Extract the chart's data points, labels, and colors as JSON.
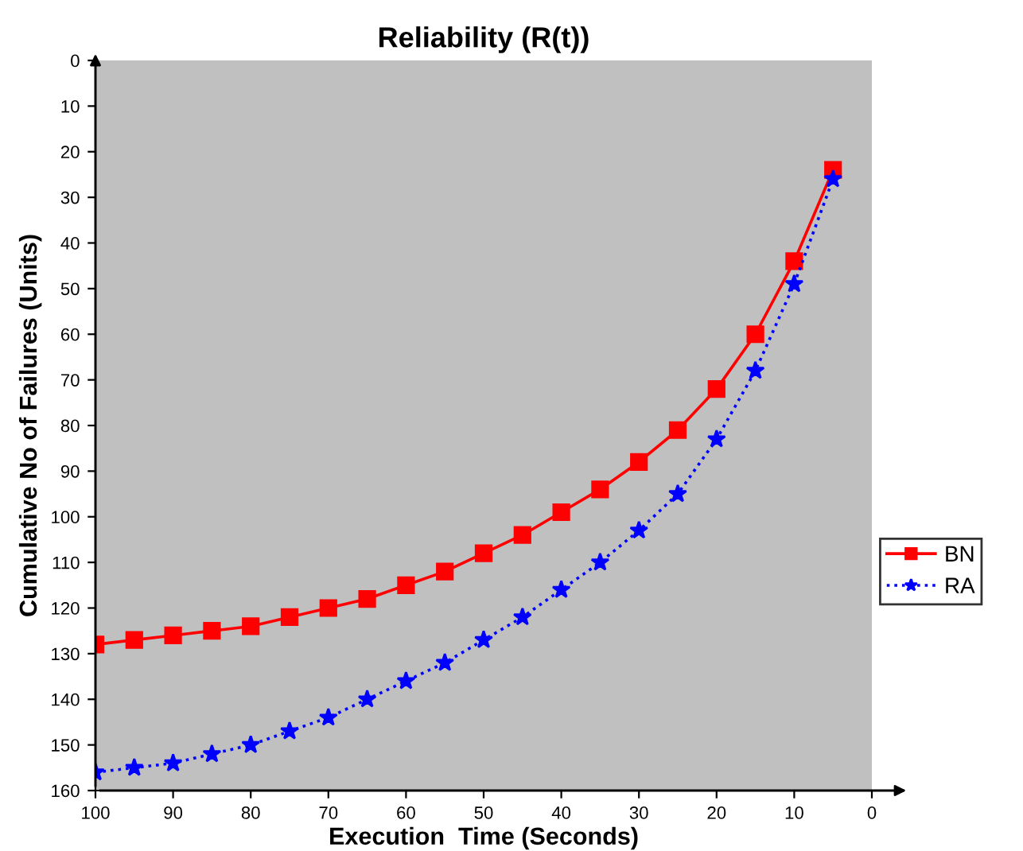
{
  "chart_data": {
    "type": "line",
    "title": "Reliability (R(t))",
    "xlabel": "Execution  Time (Seconds)",
    "ylabel": "Cumulative No of Failures (Units)",
    "x": [
      100,
      95,
      90,
      85,
      80,
      75,
      70,
      65,
      60,
      55,
      50,
      45,
      40,
      35,
      30,
      25,
      20,
      15,
      10,
      5
    ],
    "series": [
      {
        "name": "BN",
        "color": "#ff0000",
        "marker": "square",
        "line_style": "solid",
        "values": [
          128,
          127,
          126,
          125,
          124,
          122,
          120,
          118,
          115,
          112,
          108,
          104,
          99,
          94,
          88,
          81,
          72,
          60,
          44,
          24
        ]
      },
      {
        "name": "RA",
        "color": "#0000ff",
        "marker": "star",
        "line_style": "dotted",
        "values": [
          156,
          155,
          154,
          152,
          150,
          147,
          144,
          140,
          136,
          132,
          127,
          122,
          116,
          110,
          103,
          95,
          83,
          68,
          49,
          26
        ]
      }
    ],
    "xlim": [
      100,
      0
    ],
    "xticks": [
      100,
      90,
      80,
      70,
      60,
      50,
      40,
      30,
      20,
      10,
      0
    ],
    "ylim": [
      160,
      0
    ],
    "yticks": [
      0,
      10,
      20,
      30,
      40,
      50,
      60,
      70,
      80,
      90,
      100,
      110,
      120,
      130,
      140,
      150,
      160
    ],
    "grid": false,
    "legend": "right"
  }
}
